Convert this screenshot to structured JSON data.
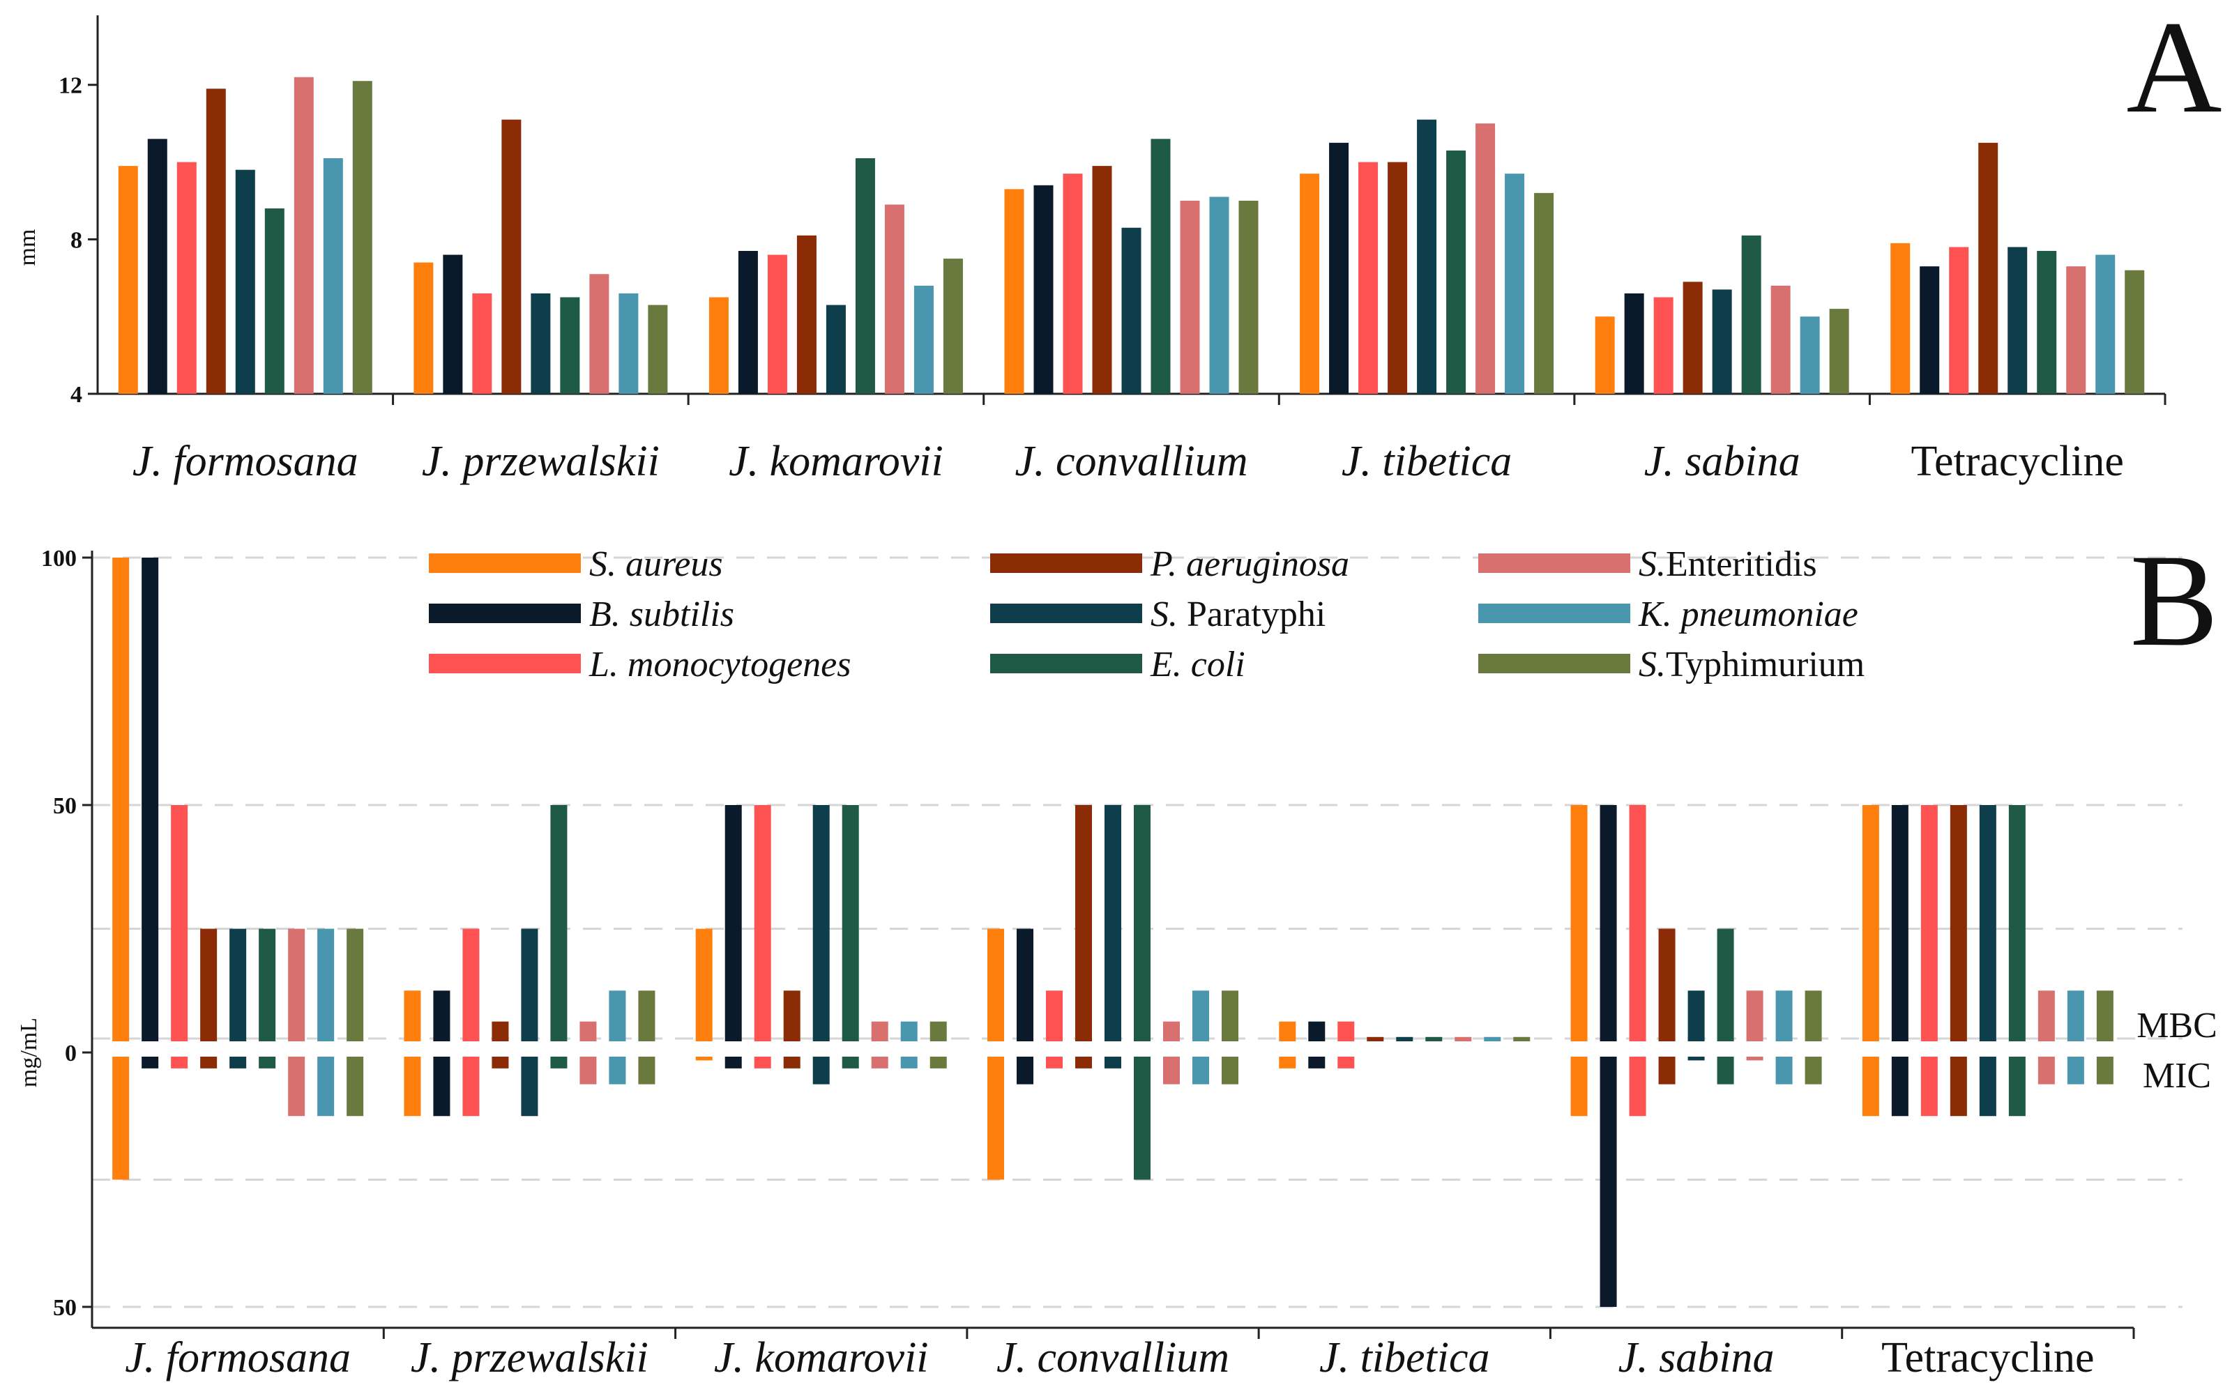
{
  "colors": {
    "S. aureus": "#FF7F0E",
    "B. subtilis": "#0B1A2A",
    "L. monocytogenes": "#FF5252",
    "P. aeruginosa": "#8B2C07",
    "S. Paratyphi": "#0E3E4B",
    "E. coli": "#1E5A46",
    "S. Enteritidis": "#D97070",
    "K. pneumoniae": "#4A96AE",
    "S. Typhimurium": "#6A7A3E"
  },
  "chart_data": [
    {
      "type": "bar",
      "panel": "A",
      "panel_label": "A",
      "ylabel": "mm",
      "ylim": [
        4,
        13.8
      ],
      "yticks": [
        4,
        8,
        12
      ],
      "ytick_labels": [
        "4",
        "8",
        "12"
      ],
      "categories": [
        "J. formosana",
        "J. przewalskii",
        "J. komarovii",
        "J. convallium",
        "J. tibetica",
        "J. sabina",
        "Tetracycline"
      ],
      "series": [
        {
          "name": "S. aureus",
          "values": [
            9.9,
            7.4,
            6.5,
            9.3,
            9.7,
            6.0,
            7.9
          ]
        },
        {
          "name": "B. subtilis",
          "values": [
            10.6,
            7.6,
            7.7,
            9.4,
            10.5,
            6.6,
            7.3
          ]
        },
        {
          "name": "L. monocytogenes",
          "values": [
            10.0,
            6.6,
            7.6,
            9.7,
            10.0,
            6.5,
            7.8
          ]
        },
        {
          "name": "P. aeruginosa",
          "values": [
            11.9,
            11.1,
            8.1,
            9.9,
            10.0,
            6.9,
            10.5
          ]
        },
        {
          "name": "S. Paratyphi",
          "values": [
            9.8,
            6.6,
            6.3,
            8.3,
            11.1,
            6.7,
            7.8
          ]
        },
        {
          "name": "E. coli",
          "values": [
            8.8,
            6.5,
            10.1,
            10.6,
            10.3,
            8.1,
            7.7
          ]
        },
        {
          "name": "S. Enteritidis",
          "values": [
            12.2,
            7.1,
            8.9,
            9.0,
            11.0,
            6.8,
            7.3
          ]
        },
        {
          "name": "K. pneumoniae",
          "values": [
            10.1,
            6.6,
            6.8,
            9.1,
            9.7,
            6.0,
            7.6
          ]
        },
        {
          "name": "S. Typhimurium",
          "values": [
            12.1,
            6.3,
            7.5,
            9.0,
            9.2,
            6.2,
            7.2
          ]
        }
      ]
    },
    {
      "type": "bar",
      "panel": "B",
      "panel_label": "B",
      "ylabel": "mg/mL",
      "ylim_top": [
        0,
        100
      ],
      "ylim_bottom": [
        0,
        50
      ],
      "yticks_top": [
        100,
        50,
        0
      ],
      "ytick_labels": [
        "100",
        "50",
        "0",
        "50"
      ],
      "upper_label": "MBC",
      "lower_label": "MIC",
      "categories": [
        "J. formosana",
        "J. przewalskii",
        "J. komarovii",
        "J. convallium",
        "J. tibetica",
        "J. sabina",
        "Tetracycline"
      ],
      "series": [
        {
          "name": "S. aureus",
          "MBC": [
            100,
            12.5,
            25,
            25,
            6.25,
            50,
            50
          ],
          "MIC": [
            25,
            12.5,
            1.56,
            25,
            3.13,
            12.5,
            12.5
          ]
        },
        {
          "name": "B. subtilis",
          "MBC": [
            100,
            12.5,
            50,
            25,
            6.25,
            50,
            50
          ],
          "MIC": [
            3.13,
            12.5,
            3.13,
            6.25,
            3.13,
            50,
            12.5
          ]
        },
        {
          "name": "L. monocytogenes",
          "MBC": [
            50,
            25,
            50,
            12.5,
            6.25,
            50,
            50
          ],
          "MIC": [
            3.13,
            12.5,
            3.13,
            3.13,
            3.13,
            12.5,
            12.5
          ]
        },
        {
          "name": "P. aeruginosa",
          "MBC": [
            25,
            6.25,
            12.5,
            50,
            3.13,
            25,
            50
          ],
          "MIC": [
            3.13,
            3.13,
            3.13,
            3.13,
            0.78,
            6.25,
            12.5
          ]
        },
        {
          "name": "S. Paratyphi",
          "MBC": [
            25,
            25,
            50,
            50,
            3.13,
            12.5,
            50
          ],
          "MIC": [
            3.13,
            12.5,
            6.25,
            3.13,
            0.78,
            1.56,
            12.5
          ]
        },
        {
          "name": "E. coli",
          "MBC": [
            25,
            50,
            50,
            50,
            3.13,
            25,
            50
          ],
          "MIC": [
            3.13,
            3.13,
            3.13,
            25,
            0.78,
            6.25,
            12.5
          ]
        },
        {
          "name": "S. Enteritidis",
          "MBC": [
            25,
            6.25,
            6.25,
            6.25,
            3.13,
            12.5,
            12.5
          ],
          "MIC": [
            12.5,
            6.25,
            3.13,
            6.25,
            0.78,
            1.56,
            6.25
          ]
        },
        {
          "name": "K. pneumoniae",
          "MBC": [
            25,
            12.5,
            6.25,
            12.5,
            3.13,
            12.5,
            12.5
          ],
          "MIC": [
            12.5,
            6.25,
            3.13,
            6.25,
            0.78,
            6.25,
            6.25
          ]
        },
        {
          "name": "S. Typhimurium",
          "MBC": [
            25,
            12.5,
            6.25,
            12.5,
            3.13,
            12.5,
            12.5
          ],
          "MIC": [
            12.5,
            6.25,
            3.13,
            6.25,
            0.78,
            6.25,
            6.25
          ]
        }
      ]
    }
  ],
  "legend": [
    {
      "label": "S. aureus",
      "italic": true
    },
    {
      "label": "B. subtilis",
      "italic": true
    },
    {
      "label": "L. monocytogenes",
      "italic": true
    },
    {
      "label": "P. aeruginosa",
      "italic": true
    },
    {
      "label": "S. Paratyphi",
      "italic_prefix": "S.",
      "rest": " Paratyphi"
    },
    {
      "label": "E. coli",
      "italic": true
    },
    {
      "label": "S.Enteritidis",
      "italic_prefix": "S.",
      "rest": "Enteritidis"
    },
    {
      "label": "K. pneumoniae",
      "italic": true
    },
    {
      "label": "S.Typhimurium",
      "italic_prefix": "S.",
      "rest": "Typhimurium"
    }
  ]
}
